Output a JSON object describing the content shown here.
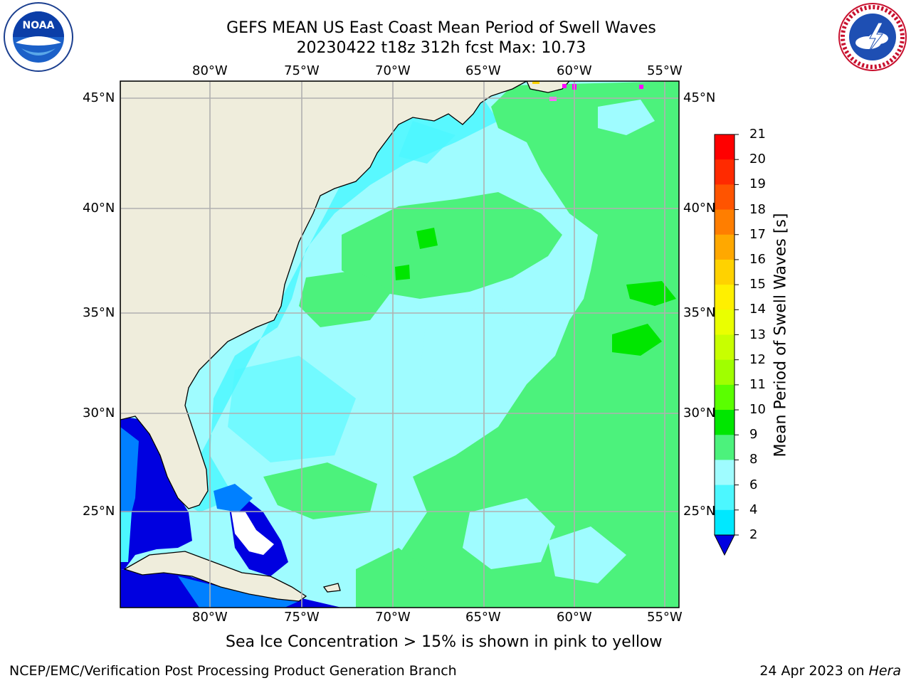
{
  "header": {
    "title_line1": "GEFS MEAN US East Coast Mean Period of Swell Waves",
    "title_line2": "20230422 t18z 312h fcst   Max: 10.73"
  },
  "logos": {
    "left": {
      "text": "NOAA",
      "ring_text": "NATIONAL OCEANIC AND ATMOSPHERIC ADMINISTRATION · U.S. DEPARTMENT OF COMMERCE"
    },
    "right": {
      "ring_text": "NATIONAL WEATHER SERVICE"
    }
  },
  "map": {
    "lon_labels": [
      "80°W",
      "75°W",
      "70°W",
      "65°W",
      "60°W",
      "55°W"
    ],
    "lat_labels": [
      "45°N",
      "40°N",
      "35°N",
      "30°N",
      "25°N"
    ]
  },
  "colorbar": {
    "label": "Mean Period of Swell Waves [s]",
    "ticks": [
      "21",
      "20",
      "19",
      "18",
      "17",
      "16",
      "15",
      "14",
      "13",
      "12",
      "11",
      "10",
      "9",
      "8",
      "6",
      "4",
      "2"
    ],
    "colors": [
      "#ff0000",
      "#ff2a00",
      "#ff5400",
      "#ff7e00",
      "#ffa800",
      "#ffd200",
      "#fff000",
      "#eaff00",
      "#c8ff00",
      "#a0ff00",
      "#5aff00",
      "#00e600",
      "#4cf27c",
      "#9ffcff",
      "#4cf7ff",
      "#00e8ff",
      "#0080ff",
      "#0000e0"
    ]
  },
  "colors": {
    "land": "#efeddc",
    "ocean_base": "#9ffcff",
    "grid": "#b0b0b0"
  },
  "notes": {
    "ice_note": "Sea Ice Concentration > 15% is shown in pink to yellow"
  },
  "footer": {
    "left": "NCEP/EMC/Verification Post Processing Product Generation Branch",
    "right_date": "24 Apr 2023 on ",
    "right_host": "Hera"
  }
}
